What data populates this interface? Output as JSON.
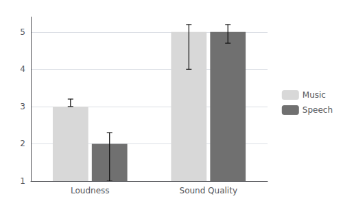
{
  "chart_data": {
    "type": "bar",
    "categories": [
      "Loudness",
      "Sound Quality"
    ],
    "series": [
      {
        "name": "Music",
        "color": "#d8d8d8",
        "values": [
          3,
          5
        ],
        "errors_low": [
          0.0,
          1.0
        ],
        "errors_high": [
          0.2,
          0.2
        ]
      },
      {
        "name": "Speech",
        "color": "#707070",
        "values": [
          2,
          5
        ],
        "errors_low": [
          1.0,
          0.3
        ],
        "errors_high": [
          0.3,
          0.2
        ]
      }
    ],
    "ylim": [
      1,
      5.4
    ],
    "yticks": [
      1,
      2,
      3,
      4,
      5
    ],
    "grid": true,
    "legend": "right"
  }
}
